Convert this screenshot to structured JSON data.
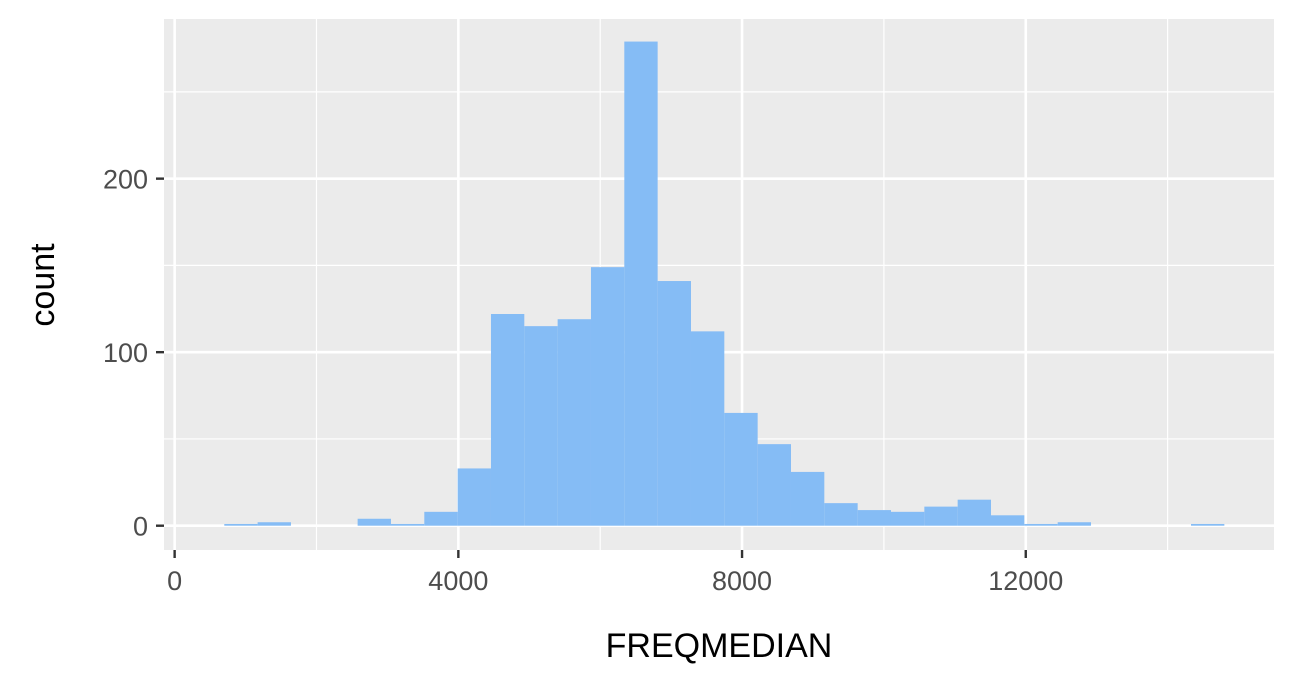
{
  "chart_data": {
    "type": "bar",
    "subtype": "histogram",
    "xlabel": "FREQMEDIAN",
    "ylabel": "count",
    "xlim": [
      -150,
      15500
    ],
    "ylim": [
      -14,
      292
    ],
    "x_ticks": [
      0,
      4000,
      8000,
      12000
    ],
    "x_tick_labels": [
      "0",
      "4000",
      "8000",
      "12000"
    ],
    "y_ticks": [
      0,
      100,
      200
    ],
    "y_tick_labels": [
      "0",
      "100",
      "200"
    ],
    "x_minor_gridlines": [
      2000,
      6000,
      10000,
      14000
    ],
    "y_minor_gridlines": [
      50,
      150,
      250
    ],
    "bin_width": 470,
    "bins": [
      {
        "start": 700,
        "end": 1170,
        "count": 1
      },
      {
        "start": 1170,
        "end": 1640,
        "count": 2
      },
      {
        "start": 1640,
        "end": 2110,
        "count": 0
      },
      {
        "start": 2110,
        "end": 2580,
        "count": 0
      },
      {
        "start": 2580,
        "end": 3050,
        "count": 4
      },
      {
        "start": 3050,
        "end": 3520,
        "count": 1
      },
      {
        "start": 3520,
        "end": 3990,
        "count": 8
      },
      {
        "start": 3990,
        "end": 4460,
        "count": 33
      },
      {
        "start": 4460,
        "end": 4930,
        "count": 122
      },
      {
        "start": 4930,
        "end": 5400,
        "count": 115
      },
      {
        "start": 5400,
        "end": 5870,
        "count": 119
      },
      {
        "start": 5870,
        "end": 6340,
        "count": 149
      },
      {
        "start": 6340,
        "end": 6810,
        "count": 279
      },
      {
        "start": 6810,
        "end": 7280,
        "count": 141
      },
      {
        "start": 7280,
        "end": 7750,
        "count": 112
      },
      {
        "start": 7750,
        "end": 8220,
        "count": 65
      },
      {
        "start": 8220,
        "end": 8690,
        "count": 47
      },
      {
        "start": 8690,
        "end": 9160,
        "count": 31
      },
      {
        "start": 9160,
        "end": 9630,
        "count": 13
      },
      {
        "start": 9630,
        "end": 10100,
        "count": 9
      },
      {
        "start": 10100,
        "end": 10570,
        "count": 8
      },
      {
        "start": 10570,
        "end": 11040,
        "count": 11
      },
      {
        "start": 11040,
        "end": 11510,
        "count": 15
      },
      {
        "start": 11510,
        "end": 11980,
        "count": 6
      },
      {
        "start": 11980,
        "end": 12450,
        "count": 1
      },
      {
        "start": 12450,
        "end": 12920,
        "count": 2
      },
      {
        "start": 12920,
        "end": 13390,
        "count": 0
      },
      {
        "start": 13390,
        "end": 13860,
        "count": 0
      },
      {
        "start": 13860,
        "end": 14330,
        "count": 0
      },
      {
        "start": 14330,
        "end": 14800,
        "count": 1
      }
    ],
    "grid": true,
    "legend": "none",
    "colors": {
      "bar_fill": "#85bcf5",
      "panel_background": "#ebebeb",
      "grid_major": "#ffffff",
      "grid_minor": "#ffffff",
      "tick_color": "#333333"
    }
  }
}
